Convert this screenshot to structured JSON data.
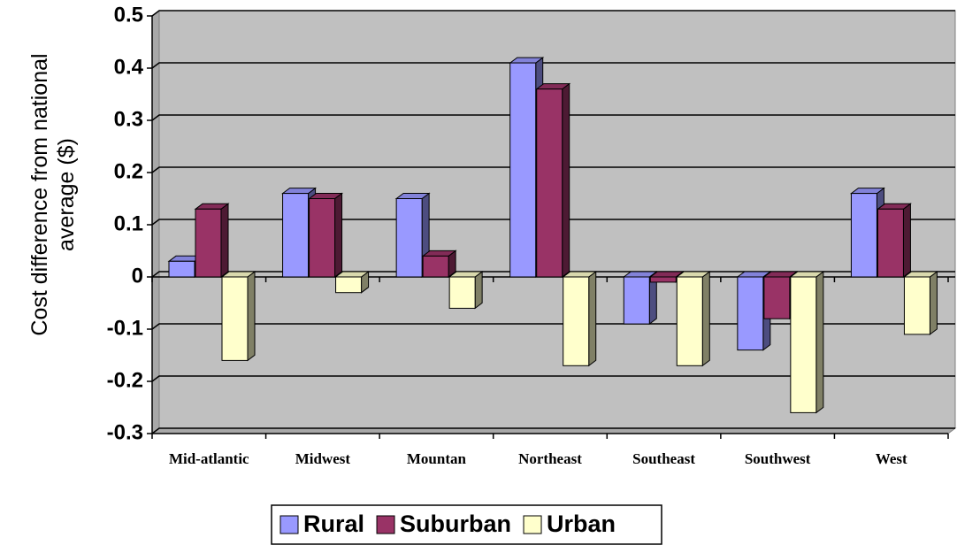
{
  "chart_data": {
    "type": "bar3d",
    "y_label": "Cost difference from national average ($)",
    "categories": [
      "Mid-atlantic",
      "Midwest",
      "Mountan",
      "Northeast",
      "Southeast",
      "Southwest",
      "West"
    ],
    "series": [
      {
        "name": "Rural",
        "color": "#9999ff",
        "values": [
          0.03,
          0.16,
          0.15,
          0.41,
          -0.09,
          -0.14,
          0.16
        ]
      },
      {
        "name": "Suburban",
        "color": "#993366",
        "values": [
          0.13,
          0.15,
          0.04,
          0.36,
          -0.01,
          -0.08,
          0.13
        ]
      },
      {
        "name": "Urban",
        "color": "#ffffcc",
        "values": [
          -0.16,
          -0.03,
          -0.06,
          -0.17,
          -0.17,
          -0.26,
          -0.11
        ]
      }
    ],
    "ylim": [
      -0.3,
      0.5
    ],
    "yticks": [
      -0.3,
      -0.2,
      -0.1,
      0,
      0.1,
      0.2,
      0.3,
      0.4,
      0.5
    ],
    "grid": true,
    "legend": "bottom"
  }
}
